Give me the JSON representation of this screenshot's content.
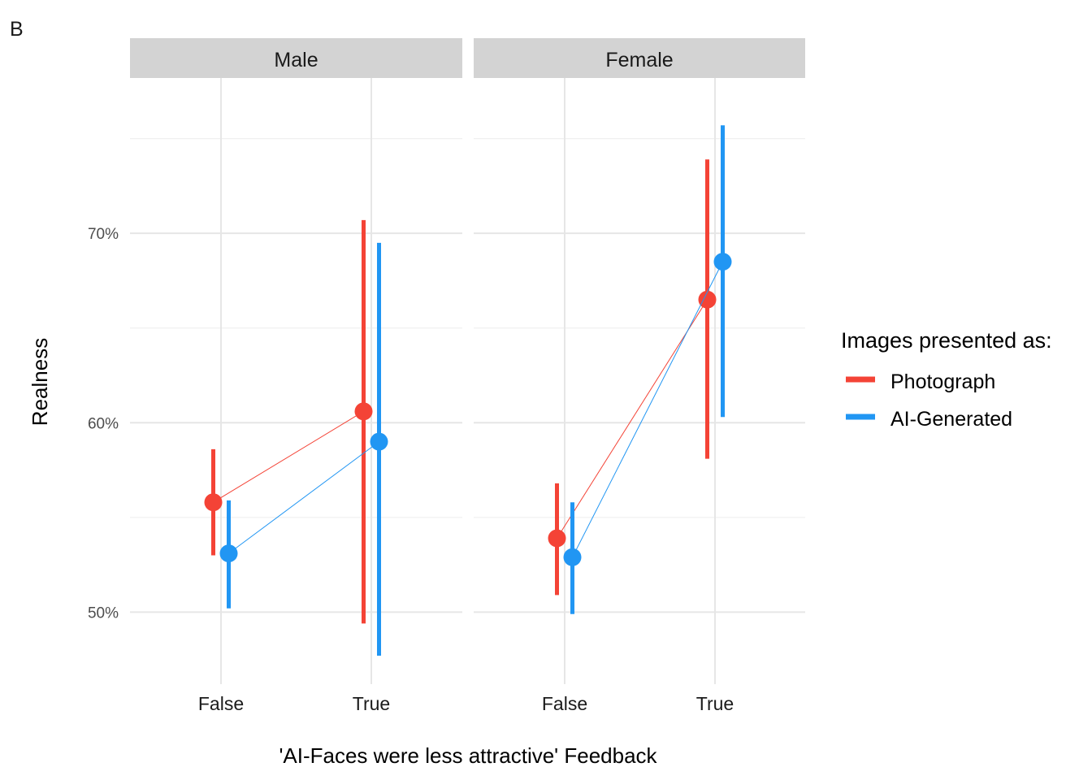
{
  "panel_tag": "B",
  "colors": {
    "photograph": "#f44336",
    "ai_generated": "#2196f3",
    "strip_bg": "#d3d3d3",
    "grid_major": "#e6e6e6",
    "grid_minor": "#f0f0f0"
  },
  "chart_data": {
    "type": "pointrange",
    "facets": [
      "Male",
      "Female"
    ],
    "categories": [
      "False",
      "True"
    ],
    "xlabel": "'AI-Faces were less attractive' Feedback",
    "ylabel": "Realness",
    "yticks": [
      "50%",
      "60%",
      "70%"
    ],
    "ytick_values": [
      50,
      60,
      70
    ],
    "ylim": [
      46.2,
      78.2
    ],
    "grid": true,
    "legend": {
      "title": "Images presented as:",
      "position": "right",
      "entries": [
        "Photograph",
        "AI-Generated"
      ]
    },
    "series": [
      {
        "name": "Photograph",
        "color": "#f44336",
        "data": {
          "Male": [
            {
              "x": "False",
              "y": 55.8,
              "lo": 53.0,
              "hi": 58.6
            },
            {
              "x": "True",
              "y": 60.6,
              "lo": 49.4,
              "hi": 70.7
            }
          ],
          "Female": [
            {
              "x": "False",
              "y": 53.9,
              "lo": 50.9,
              "hi": 56.8
            },
            {
              "x": "True",
              "y": 66.5,
              "lo": 58.1,
              "hi": 73.9
            }
          ]
        }
      },
      {
        "name": "AI-Generated",
        "color": "#2196f3",
        "data": {
          "Male": [
            {
              "x": "False",
              "y": 53.1,
              "lo": 50.2,
              "hi": 55.9
            },
            {
              "x": "True",
              "y": 59.0,
              "lo": 47.7,
              "hi": 69.5
            }
          ],
          "Female": [
            {
              "x": "False",
              "y": 52.9,
              "lo": 49.9,
              "hi": 55.8
            },
            {
              "x": "True",
              "y": 68.5,
              "lo": 60.3,
              "hi": 75.7
            }
          ]
        }
      }
    ]
  }
}
